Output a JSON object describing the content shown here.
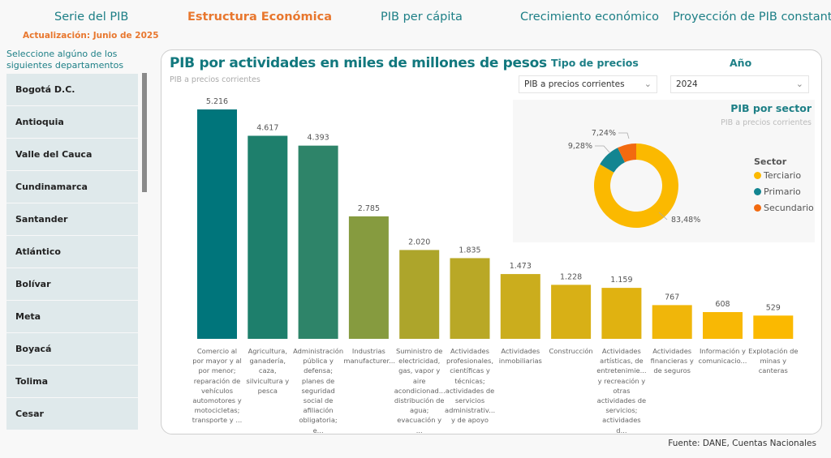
{
  "nav": {
    "tabs": [
      {
        "label": "Serie del PIB",
        "active": false
      },
      {
        "label": "Estructura Económica",
        "active": true
      },
      {
        "label": "PIB per cápita",
        "active": false
      },
      {
        "label": "Crecimiento económico",
        "active": false
      },
      {
        "label": "Proyección de PIB constante",
        "active": false
      }
    ],
    "update": "Actualización: Junio de 2025"
  },
  "sidebar": {
    "prompt": "Seleccione algúno de los siguientes departamentos",
    "departments": [
      "Bogotá D.C.",
      "Antioquia",
      "Valle del Cauca",
      "Cundinamarca",
      "Santander",
      "Atlántico",
      "Bolívar",
      "Meta",
      "Boyacá",
      "Tolima",
      "Cesar"
    ]
  },
  "filters": {
    "price_type_label": "Tipo de precios",
    "price_type_value": "PIB a precios corrientes",
    "year_label": "Año",
    "year_value": "2024"
  },
  "colors": {
    "accent": "#1d7f86",
    "highlight": "#e8772e",
    "terciario": "#fbb900",
    "primario": "#138591",
    "secundario": "#f26a10"
  },
  "chart_data": [
    {
      "type": "bar",
      "title": "PIB por actividades en miles de millones de pesos",
      "subtitle": "PIB a precios corrientes",
      "xlabel": "",
      "ylabel": "",
      "ylim": [
        0,
        5216
      ],
      "grid": false,
      "categories": [
        "Comercio al por mayor y al por menor; reparación de vehículos automotores y motocicletas; transporte y ...",
        "Agricultura, ganadería, caza, silvicultura y pesca",
        "Administración pública y defensa; planes de seguridad social de afiliación obligatoria; e...",
        "Industrias manufacturer...",
        "Suministro de electricidad, gas, vapor y aire acondicionad... distribución de agua; evacuación y ...",
        "Actividades profesionales, científicas y técnicas; actividades de servicios administrativ... y de apoyo",
        "Actividades inmobiliarias",
        "Construcción",
        "Actividades artísticas, de entretenimie... y recreación y otras actividades de servicios; actividades d...",
        "Actividades financieras y de seguros",
        "Información y comunicacio...",
        "Explotación de minas y canteras"
      ],
      "category_lines": [
        [
          "Comercio al",
          "por mayor y al",
          "por menor;",
          "reparación de",
          "vehículos",
          "automotores y",
          "motocicletas;",
          "transporte y ..."
        ],
        [
          "Agricultura,",
          "ganadería,",
          "caza,",
          "silvicultura y",
          "pesca"
        ],
        [
          "Administración",
          "pública y",
          "defensa;",
          "planes de",
          "seguridad",
          "social de",
          "afiliación",
          "obligatoria; e..."
        ],
        [
          "Industrias",
          "manufacturer..."
        ],
        [
          "Suministro de",
          "electricidad,",
          "gas, vapor y",
          "aire",
          "acondicionad...",
          "distribución de",
          "agua;",
          "evacuación y ..."
        ],
        [
          "Actividades",
          "profesionales,",
          "científicas y",
          "técnicas;",
          "actividades de",
          "servicios",
          "administrativ...",
          "y de apoyo"
        ],
        [
          "Actividades",
          "inmobiliarias"
        ],
        [
          "Construcción"
        ],
        [
          "Actividades",
          "artísticas, de",
          "entretenimie...",
          "y recreación y",
          "otras",
          "actividades de",
          "servicios;",
          "actividades d..."
        ],
        [
          "Actividades",
          "financieras y",
          "de seguros"
        ],
        [
          "Información y",
          "comunicacio..."
        ],
        [
          "Explotación de",
          "minas y",
          "canteras"
        ]
      ],
      "values": [
        5216,
        4617,
        4393,
        2785,
        2020,
        1835,
        1473,
        1228,
        1159,
        767,
        608,
        529
      ],
      "value_labels": [
        "5.216",
        "4.617",
        "4.393",
        "2.785",
        "2.020",
        "1.835",
        "1.473",
        "1.228",
        "1.159",
        "767",
        "608",
        "529"
      ],
      "bar_colors": [
        "#00757b",
        "#1e7f6c",
        "#2e8469",
        "#869b3f",
        "#ada52b",
        "#b9a826",
        "#cbad1d",
        "#d8b016",
        "#e0b211",
        "#f0b60a",
        "#f8b805",
        "#fbb900"
      ]
    },
    {
      "type": "pie",
      "title": "PIB por sector",
      "subtitle": "PIB a precios corrientes",
      "legend_title": "Sector",
      "legend_position": "right",
      "slices": [
        {
          "label": "Terciario",
          "value": 83.48,
          "display": "83,48%",
          "color": "#fbb900"
        },
        {
          "label": "Primario",
          "value": 9.28,
          "display": "9,28%",
          "color": "#138591"
        },
        {
          "label": "Secundario",
          "value": 7.24,
          "display": "7,24%",
          "color": "#f26a10"
        }
      ]
    }
  ],
  "footer": {
    "source": "Fuente: DANE, Cuentas Nacionales"
  }
}
